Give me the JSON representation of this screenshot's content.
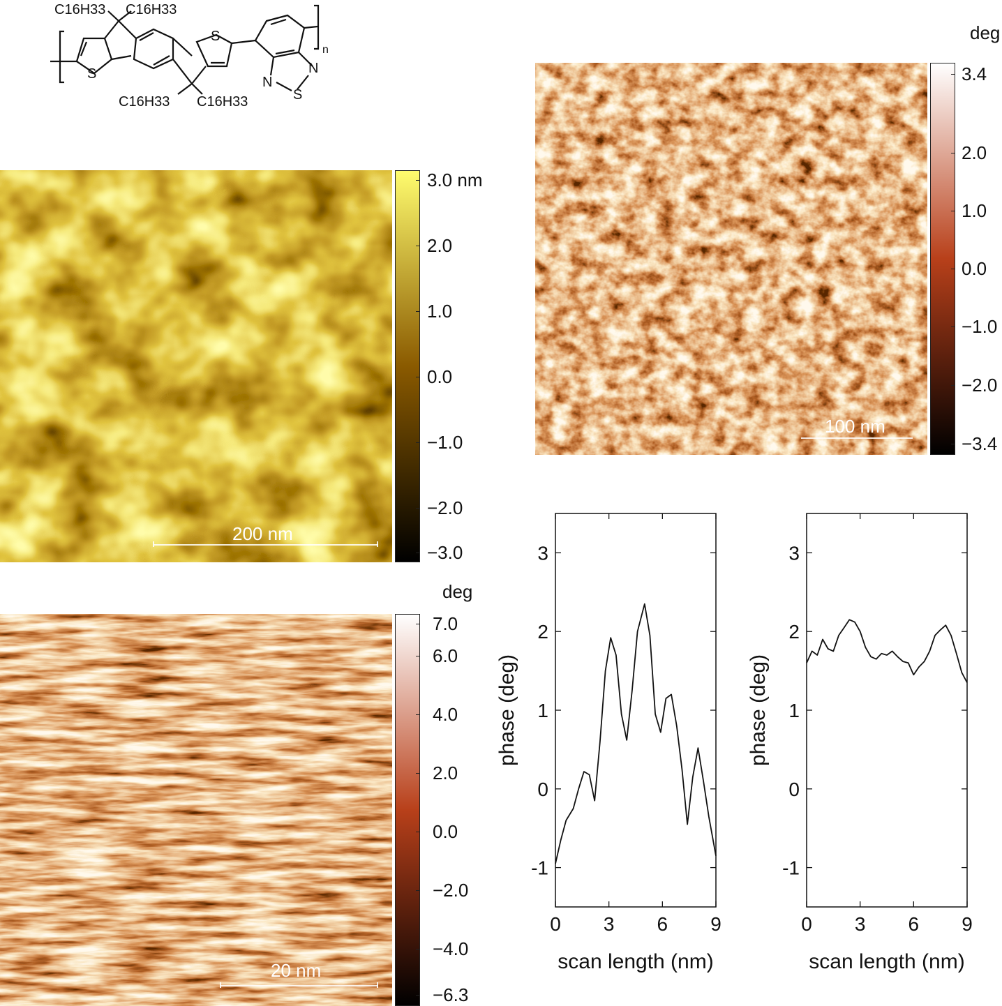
{
  "chemical_structure": {
    "substituents": [
      "C16H33",
      "C16H33",
      "C16H33",
      "C16H33"
    ],
    "atoms": [
      "S",
      "S",
      "N",
      "N",
      "S"
    ],
    "repeat": "n"
  },
  "height_image": {
    "scalebar": "200 nm",
    "colorbar_ticks": [
      "3.0 nm",
      "2.0",
      "1.0",
      "0.0",
      "−1.0",
      "−2.0",
      "−3.0"
    ],
    "colors": {
      "low": "#000000",
      "mid": "#8a5a00",
      "high": "#fffc6e"
    }
  },
  "phase_image_top": {
    "unit": "deg",
    "scalebar": "100 nm",
    "colorbar_ticks": [
      "3.4",
      "2.0",
      "1.0",
      "0.0",
      "−1.0",
      "−2.0",
      "−3.4"
    ],
    "colors": {
      "low": "#000000",
      "mid": "#b8401a",
      "high": "#ffffff"
    }
  },
  "phase_image_bottom": {
    "unit": "deg",
    "scalebar": "20 nm",
    "colorbar_ticks": [
      "7.0",
      "6.0",
      "4.0",
      "2.0",
      "0.0",
      "−2.0",
      "−4.0",
      "−6.3"
    ],
    "colors": {
      "low": "#000000",
      "mid": "#b8401a",
      "high": "#ffffff"
    }
  },
  "chart_data": [
    {
      "type": "line",
      "xlabel": "scan length (nm)",
      "ylabel": "phase (deg)",
      "xlim": [
        0,
        9
      ],
      "ylim": [
        -1.5,
        3.5
      ],
      "xticks": [
        "0",
        "3",
        "6",
        "9"
      ],
      "yticks": [
        "-1",
        "0",
        "1",
        "2",
        "3"
      ],
      "x": [
        0,
        0.3,
        0.6,
        1.0,
        1.3,
        1.6,
        1.9,
        2.2,
        2.5,
        2.8,
        3.1,
        3.4,
        3.7,
        4.0,
        4.3,
        4.6,
        5.0,
        5.3,
        5.6,
        5.9,
        6.2,
        6.5,
        6.8,
        7.1,
        7.4,
        7.7,
        8.0,
        8.3,
        8.6,
        9.0
      ],
      "y": [
        -0.95,
        -0.65,
        -0.4,
        -0.25,
        0.0,
        0.22,
        0.18,
        -0.15,
        0.6,
        1.5,
        1.92,
        1.7,
        0.95,
        0.62,
        1.25,
        2.0,
        2.35,
        1.95,
        0.95,
        0.72,
        1.15,
        1.2,
        0.8,
        0.25,
        -0.45,
        0.15,
        0.52,
        0.1,
        -0.35,
        -0.85
      ]
    },
    {
      "type": "line",
      "xlabel": "scan length (nm)",
      "ylabel": "phase (deg)",
      "xlim": [
        0,
        9
      ],
      "ylim": [
        -1.5,
        3.5
      ],
      "xticks": [
        "0",
        "3",
        "6",
        "9"
      ],
      "yticks": [
        "-1",
        "0",
        "1",
        "2",
        "3"
      ],
      "x": [
        0,
        0.3,
        0.6,
        0.9,
        1.2,
        1.5,
        1.8,
        2.1,
        2.4,
        2.7,
        3.0,
        3.3,
        3.6,
        3.9,
        4.2,
        4.5,
        4.8,
        5.1,
        5.4,
        5.7,
        6.0,
        6.3,
        6.6,
        6.9,
        7.2,
        7.5,
        7.8,
        8.1,
        8.4,
        8.7,
        9.0
      ],
      "y": [
        1.6,
        1.75,
        1.7,
        1.9,
        1.78,
        1.75,
        1.95,
        2.05,
        2.15,
        2.12,
        2.0,
        1.8,
        1.68,
        1.65,
        1.72,
        1.7,
        1.75,
        1.68,
        1.62,
        1.6,
        1.45,
        1.55,
        1.62,
        1.75,
        1.95,
        2.02,
        2.08,
        1.95,
        1.72,
        1.48,
        1.35
      ]
    }
  ]
}
